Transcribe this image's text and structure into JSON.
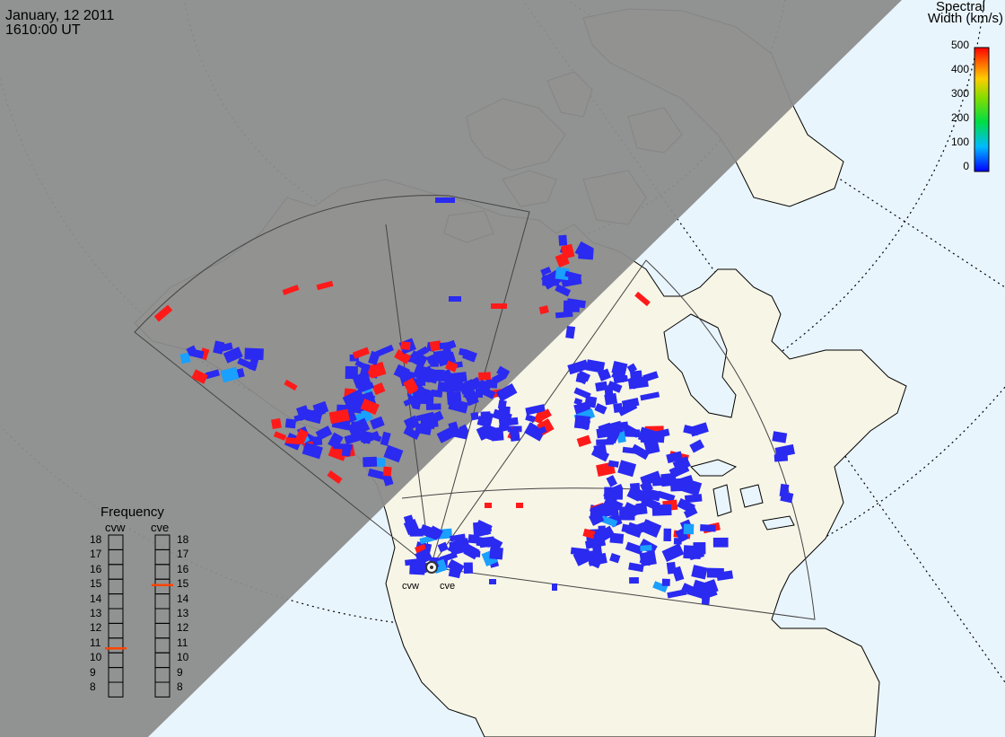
{
  "header": {
    "date": "January, 12 2011",
    "time": "1610:00 UT"
  },
  "spectral_width_legend": {
    "title_line1": "Spectral",
    "title_line2": "Width (km/s)",
    "ticks": [
      "500",
      "400",
      "300",
      "200",
      "100",
      "0"
    ],
    "colors": [
      "#ff0000",
      "#ff8800",
      "#ffdd00",
      "#00cc00",
      "#00dddd",
      "#0000ff"
    ]
  },
  "frequency_panel": {
    "title": "Frequency",
    "radar_left": "cvw",
    "radar_right": "cve",
    "scale": [
      "18",
      "17",
      "16",
      "15",
      "14",
      "13",
      "12",
      "11",
      "10",
      "9",
      "8"
    ],
    "cvw_frequency_mhz": 10.8,
    "cve_frequency_mhz": 15.1,
    "marker_color": "#ff4400"
  },
  "sites": [
    {
      "label": "cvw"
    },
    {
      "label": "cve"
    }
  ],
  "colors": {
    "night": "#8c8c8c",
    "ocean": "#e9f5fd",
    "land": "#f7f5e6",
    "scatter_low": "#2a2af0",
    "scatter_high": "#ff1a1a",
    "scatter_mid": "#1aa0ff"
  }
}
